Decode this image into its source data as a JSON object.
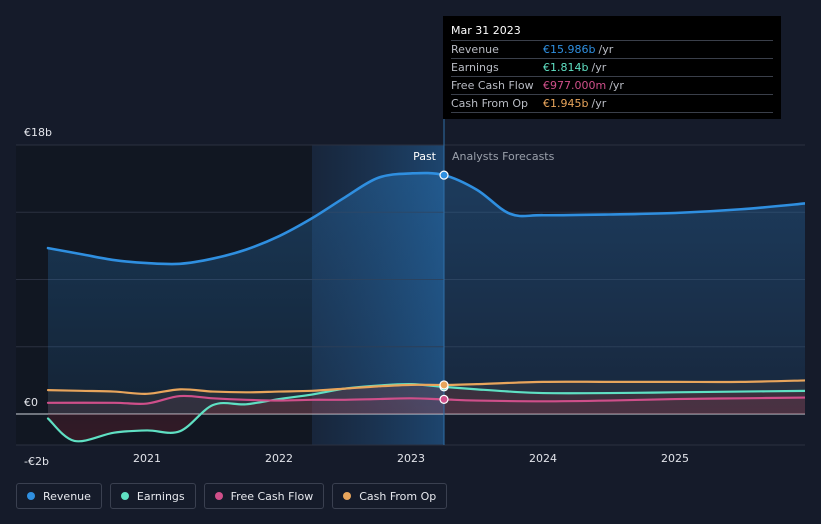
{
  "chart_data": {
    "type": "line",
    "y_labels": [
      {
        "label": "€18b",
        "value": 18
      },
      {
        "label": "€0",
        "value": 0
      },
      {
        "label": "-€2b",
        "value": -2
      }
    ],
    "ylim": [
      -2,
      18
    ],
    "xlim": [
      2020.25,
      2026.0
    ],
    "x_ticks": [
      {
        "label": "2021",
        "value": 2021.0
      },
      {
        "label": "2022",
        "value": 2022.0
      },
      {
        "label": "2023",
        "value": 2023.0
      },
      {
        "label": "2024",
        "value": 2024.0
      },
      {
        "label": "2025",
        "value": 2025.0
      }
    ],
    "past_region_start": 2022.25,
    "divider_x": 2023.25,
    "past_label": "Past",
    "forecast_label": "Analysts Forecasts",
    "series": [
      {
        "name": "Revenue",
        "color": "#2f8fe0",
        "points": [
          [
            2020.25,
            11.1
          ],
          [
            2020.5,
            10.7
          ],
          [
            2020.75,
            10.3
          ],
          [
            2021.0,
            10.1
          ],
          [
            2021.25,
            10.05
          ],
          [
            2021.5,
            10.4
          ],
          [
            2021.75,
            11.0
          ],
          [
            2022.0,
            11.9
          ],
          [
            2022.25,
            13.1
          ],
          [
            2022.5,
            14.5
          ],
          [
            2022.75,
            15.8
          ],
          [
            2023.0,
            16.1
          ],
          [
            2023.25,
            15.986
          ],
          [
            2023.5,
            15.0
          ],
          [
            2023.75,
            13.4
          ],
          [
            2024.0,
            13.3
          ],
          [
            2024.5,
            13.35
          ],
          [
            2025.0,
            13.45
          ],
          [
            2025.5,
            13.7
          ],
          [
            2026.0,
            14.1
          ]
        ]
      },
      {
        "name": "Earnings",
        "color": "#5fe0c3",
        "points": [
          [
            2020.25,
            -0.3
          ],
          [
            2020.45,
            -1.8
          ],
          [
            2020.75,
            -1.25
          ],
          [
            2021.0,
            -1.1
          ],
          [
            2021.25,
            -1.15
          ],
          [
            2021.5,
            0.6
          ],
          [
            2021.75,
            0.65
          ],
          [
            2022.0,
            1.0
          ],
          [
            2022.25,
            1.3
          ],
          [
            2022.5,
            1.7
          ],
          [
            2022.75,
            1.9
          ],
          [
            2023.0,
            2.0
          ],
          [
            2023.25,
            1.814
          ],
          [
            2023.5,
            1.65
          ],
          [
            2023.75,
            1.5
          ],
          [
            2024.0,
            1.4
          ],
          [
            2024.5,
            1.4
          ],
          [
            2025.0,
            1.45
          ],
          [
            2025.5,
            1.5
          ],
          [
            2026.0,
            1.55
          ]
        ]
      },
      {
        "name": "Free Cash Flow",
        "color": "#cf4f8a",
        "points": [
          [
            2020.25,
            0.75
          ],
          [
            2020.75,
            0.75
          ],
          [
            2021.0,
            0.7
          ],
          [
            2021.25,
            1.2
          ],
          [
            2021.5,
            1.05
          ],
          [
            2021.75,
            0.95
          ],
          [
            2022.0,
            0.9
          ],
          [
            2022.25,
            0.95
          ],
          [
            2022.5,
            0.95
          ],
          [
            2022.75,
            1.0
          ],
          [
            2023.0,
            1.05
          ],
          [
            2023.25,
            0.977
          ],
          [
            2023.5,
            0.9
          ],
          [
            2024.0,
            0.85
          ],
          [
            2024.5,
            0.9
          ],
          [
            2025.0,
            1.0
          ],
          [
            2025.5,
            1.05
          ],
          [
            2026.0,
            1.1
          ]
        ]
      },
      {
        "name": "Cash From Op",
        "color": "#e8a55c",
        "points": [
          [
            2020.25,
            1.6
          ],
          [
            2020.5,
            1.55
          ],
          [
            2020.75,
            1.5
          ],
          [
            2021.0,
            1.35
          ],
          [
            2021.25,
            1.65
          ],
          [
            2021.5,
            1.5
          ],
          [
            2021.75,
            1.45
          ],
          [
            2022.0,
            1.5
          ],
          [
            2022.25,
            1.55
          ],
          [
            2022.5,
            1.7
          ],
          [
            2022.75,
            1.85
          ],
          [
            2023.0,
            1.95
          ],
          [
            2023.25,
            1.945
          ],
          [
            2023.5,
            2.0
          ],
          [
            2024.0,
            2.15
          ],
          [
            2024.5,
            2.15
          ],
          [
            2025.0,
            2.15
          ],
          [
            2025.5,
            2.15
          ],
          [
            2026.0,
            2.25
          ]
        ]
      }
    ],
    "tooltip": {
      "date": "Mar 31 2023",
      "x": 2023.25,
      "rows": [
        {
          "name": "Revenue",
          "value": "€15.986b",
          "unit": "/yr",
          "color": "#2f8fe0"
        },
        {
          "name": "Earnings",
          "value": "€1.814b",
          "unit": "/yr",
          "color": "#5fe0c3"
        },
        {
          "name": "Free Cash Flow",
          "value": "€977.000m",
          "unit": "/yr",
          "color": "#cf4f8a"
        },
        {
          "name": "Cash From Op",
          "value": "€1.945b",
          "unit": "/yr",
          "color": "#e8a55c"
        }
      ]
    },
    "legend": [
      {
        "name": "Revenue",
        "color": "#2f8fe0"
      },
      {
        "name": "Earnings",
        "color": "#5fe0c3"
      },
      {
        "name": "Free Cash Flow",
        "color": "#cf4f8a"
      },
      {
        "name": "Cash From Op",
        "color": "#e8a55c"
      }
    ]
  }
}
